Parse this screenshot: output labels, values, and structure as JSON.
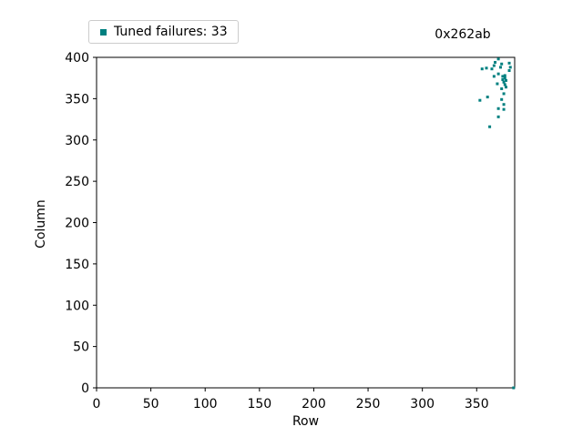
{
  "figure": {
    "background": "#ffffff",
    "text_color": "#000000",
    "spine_color": "#000000"
  },
  "legend": {
    "label": "Tuned failures: 33",
    "marker": "square-icon",
    "marker_color": "#008080"
  },
  "chart_data": {
    "type": "scatter",
    "title": "0x262ab",
    "title_loc": "right",
    "xlabel": "Row",
    "ylabel": "Column",
    "xlim": [
      0,
      385
    ],
    "ylim": [
      0,
      400
    ],
    "xticks": [
      0,
      50,
      100,
      150,
      200,
      250,
      300,
      350
    ],
    "yticks": [
      0,
      50,
      100,
      150,
      200,
      250,
      300,
      350,
      400
    ],
    "grid": false,
    "legend_position": "upper left, above axes",
    "series": [
      {
        "name": "Tuned failures",
        "count": 33,
        "color": "#008080",
        "marker": "square",
        "marker_size_px": 3,
        "points": [
          [
            370,
            398
          ],
          [
            367,
            394
          ],
          [
            380,
            393
          ],
          [
            373,
            392
          ],
          [
            366,
            390
          ],
          [
            372,
            388
          ],
          [
            381,
            388
          ],
          [
            359,
            387
          ],
          [
            355,
            386
          ],
          [
            364,
            386
          ],
          [
            380,
            384
          ],
          [
            370,
            380
          ],
          [
            366,
            377
          ],
          [
            376,
            378
          ],
          [
            374,
            377
          ],
          [
            376,
            375
          ],
          [
            374,
            373
          ],
          [
            377,
            372
          ],
          [
            375,
            370
          ],
          [
            369,
            368
          ],
          [
            376,
            367
          ],
          [
            377,
            364
          ],
          [
            373,
            362
          ],
          [
            375,
            356
          ],
          [
            360,
            352
          ],
          [
            353,
            348
          ],
          [
            373,
            349
          ],
          [
            375,
            343
          ],
          [
            370,
            338
          ],
          [
            375,
            337
          ],
          [
            370,
            328
          ],
          [
            362,
            316
          ],
          [
            384,
            0
          ]
        ]
      }
    ]
  }
}
